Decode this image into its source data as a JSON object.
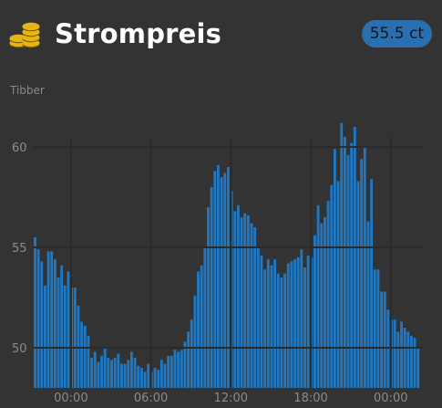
{
  "header": {
    "title": "Strompreis",
    "icon": "coins-icon",
    "icon_color": "#e7b416",
    "price_badge": "55.5 ct",
    "badge_color": "#2a6fb0"
  },
  "subtitle": "Tibber",
  "chart_data": {
    "type": "bar",
    "title": "",
    "xlabel": "",
    "ylabel": "",
    "ylim": [
      48,
      63
    ],
    "y_ticks": [
      50,
      55,
      60
    ],
    "x_start_hour": 21,
    "step_minutes": 15,
    "x_ticks": [
      {
        "label": "00:00",
        "index": 12
      },
      {
        "label": "06:00",
        "index": 36
      },
      {
        "label": "12:00",
        "index": 60
      },
      {
        "label": "18:00",
        "index": 84
      },
      {
        "label": "00:00",
        "index": 108
      }
    ],
    "grid": true,
    "bar_color": "#1f78c1",
    "values": [
      55.5,
      54.9,
      54.3,
      53.1,
      54.8,
      54.8,
      54.4,
      53.5,
      54.1,
      53.1,
      53.8,
      53.0,
      53.0,
      52.1,
      51.3,
      51.1,
      50.6,
      49.5,
      49.8,
      49.3,
      49.6,
      50.0,
      49.5,
      49.4,
      49.5,
      49.7,
      49.2,
      49.2,
      49.4,
      49.8,
      49.5,
      49.1,
      49.0,
      48.8,
      49.2,
      48.8,
      49.0,
      48.9,
      49.4,
      49.2,
      49.6,
      49.6,
      49.9,
      49.8,
      49.9,
      50.3,
      50.8,
      51.4,
      52.6,
      53.8,
      54.1,
      55.0,
      57.0,
      58.0,
      58.8,
      59.1,
      58.5,
      58.7,
      59.0,
      57.8,
      56.8,
      57.1,
      56.5,
      56.7,
      56.6,
      56.2,
      56.0,
      55.0,
      54.6,
      53.9,
      54.4,
      54.1,
      54.4,
      53.7,
      53.5,
      53.7,
      54.2,
      54.3,
      54.4,
      54.5,
      54.9,
      54.0,
      54.6,
      54.5,
      55.6,
      57.1,
      56.2,
      56.5,
      57.3,
      58.1,
      59.9,
      58.3,
      61.2,
      60.5,
      59.6,
      60.2,
      61.0,
      58.3,
      59.4,
      60.0,
      56.3,
      58.4,
      53.9,
      53.9,
      52.8,
      52.8,
      51.9,
      51.4,
      51.4,
      50.8,
      51.3,
      51.0,
      50.8,
      50.6,
      50.5,
      50.0
    ]
  }
}
